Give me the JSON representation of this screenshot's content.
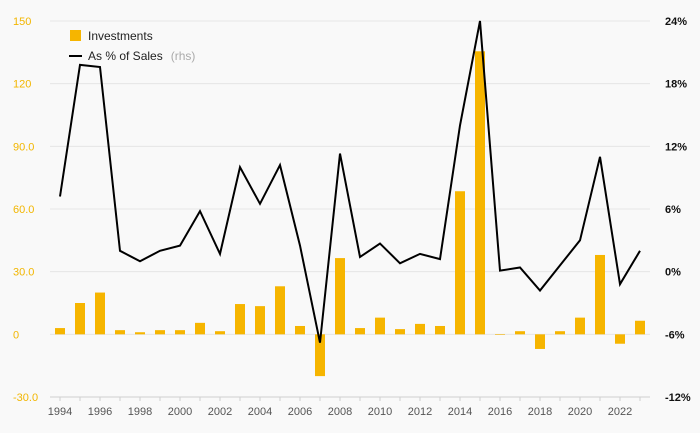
{
  "chart_data": {
    "type": "bar+line",
    "x": [
      1994,
      1995,
      1996,
      1997,
      1998,
      1999,
      2000,
      2001,
      2002,
      2003,
      2004,
      2005,
      2006,
      2007,
      2008,
      2009,
      2010,
      2011,
      2012,
      2013,
      2014,
      2015,
      2016,
      2017,
      2018,
      2019,
      2020,
      2021,
      2022,
      2023
    ],
    "series": [
      {
        "name": "Investments",
        "type": "bar",
        "axis": "left",
        "color": "#f6b500",
        "values": [
          3,
          15,
          20,
          2,
          1,
          2,
          2,
          5.5,
          1.5,
          14.5,
          13.5,
          23,
          4,
          -20,
          36.5,
          3,
          8,
          2.5,
          5,
          4,
          68.5,
          135.5,
          0,
          1.5,
          -7,
          1.5,
          8,
          38,
          -4.5,
          6.5
        ]
      },
      {
        "name": "As % of Sales",
        "name_suffix": "(rhs)",
        "type": "line",
        "axis": "right",
        "color": "#000000",
        "values": [
          7.2,
          19.8,
          19.6,
          2.0,
          1.0,
          2.0,
          2.5,
          5.8,
          1.7,
          10.0,
          6.5,
          10.2,
          2.5,
          -6.8,
          11.3,
          1.4,
          2.7,
          0.8,
          1.7,
          1.2,
          14.0,
          24.0,
          0.1,
          0.4,
          -1.8,
          0.6,
          3.0,
          11.0,
          -1.2,
          2.0
        ]
      }
    ],
    "y_left": {
      "min": -30,
      "max": 150,
      "ticks": [
        -30,
        0,
        30,
        60,
        90,
        120,
        150
      ],
      "labels": [
        "-30.0",
        "0",
        "30.0",
        "60.0",
        "90.0",
        "120",
        "150"
      ]
    },
    "y_right": {
      "min": -12,
      "max": 24,
      "ticks": [
        -12,
        -6,
        0,
        6,
        12,
        18,
        24
      ],
      "labels": [
        "-12%",
        "-6%",
        "0%",
        "6%",
        "12%",
        "18%",
        "24%"
      ]
    },
    "x_tick_labels": [
      "1994",
      "1996",
      "1998",
      "2000",
      "2002",
      "2004",
      "2006",
      "2008",
      "2010",
      "2012",
      "2014",
      "2016",
      "2018",
      "2020",
      "2022"
    ],
    "grid": true,
    "legend_position": "top-left"
  }
}
